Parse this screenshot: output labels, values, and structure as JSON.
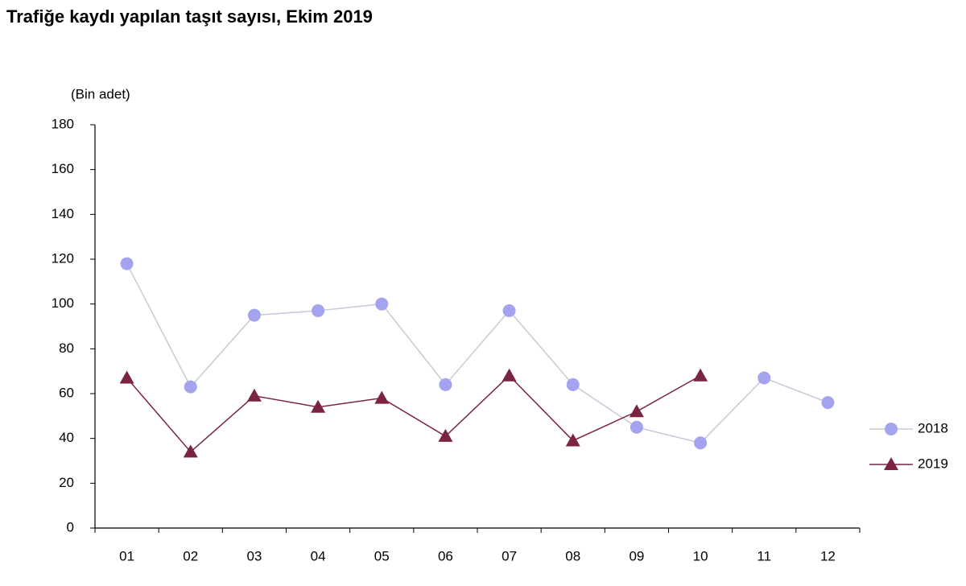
{
  "chart_data": {
    "type": "line",
    "title": "Trafiğe kaydı yapılan taşıt sayısı, Ekim 2019",
    "y_label": "(Bin adet)",
    "categories": [
      "01",
      "02",
      "03",
      "04",
      "05",
      "06",
      "07",
      "08",
      "09",
      "10",
      "11",
      "12"
    ],
    "series": [
      {
        "name": "2018",
        "color": "#a3a3f0",
        "marker": "circle",
        "values": [
          118,
          63,
          95,
          97,
          100,
          64,
          97,
          64,
          45,
          38,
          67,
          56
        ]
      },
      {
        "name": "2019",
        "color": "#7b2343",
        "marker": "triangle",
        "values": [
          67,
          34,
          59,
          54,
          58,
          41,
          68,
          39,
          52,
          68,
          null,
          null
        ]
      }
    ],
    "ylim": [
      0,
      180
    ],
    "yticks": [
      0,
      20,
      40,
      60,
      80,
      100,
      120,
      140,
      160,
      180
    ],
    "grid": false,
    "legend": "right"
  }
}
